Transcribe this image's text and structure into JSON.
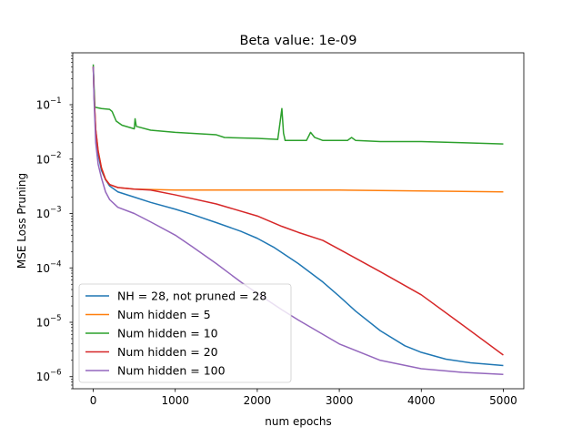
{
  "chart_data": {
    "type": "line",
    "title": "Beta value: 1e-09",
    "xlabel": "num epochs",
    "ylabel": "MSE Loss Pruning",
    "x_ticks": [
      0,
      1000,
      2000,
      3000,
      4000,
      5000
    ],
    "x_tick_labels": [
      "0",
      "1000",
      "2000",
      "3000",
      "4000",
      "5000"
    ],
    "xlim": [
      -250,
      5250
    ],
    "yscale": "log",
    "ylim": [
      6e-07,
      0.9
    ],
    "y_ticks": [
      1e-06,
      1e-05,
      0.0001,
      0.001,
      0.01,
      0.1
    ],
    "y_tick_labels": [
      {
        "base": "10",
        "exp": "−6"
      },
      {
        "base": "10",
        "exp": "−5"
      },
      {
        "base": "10",
        "exp": "−4"
      },
      {
        "base": "10",
        "exp": "−3"
      },
      {
        "base": "10",
        "exp": "−2"
      },
      {
        "base": "10",
        "exp": "−1"
      }
    ],
    "grid": false,
    "legend_position": "lower-left",
    "series": [
      {
        "name": "NH = 28, not pruned = 28",
        "color": "#1f77b4",
        "points": [
          [
            0,
            0.5
          ],
          [
            10,
            0.15
          ],
          [
            30,
            0.03
          ],
          [
            60,
            0.012
          ],
          [
            100,
            0.0062
          ],
          [
            150,
            0.0042
          ],
          [
            200,
            0.0032
          ],
          [
            300,
            0.0025
          ],
          [
            500,
            0.002
          ],
          [
            700,
            0.0016
          ],
          [
            1000,
            0.0012
          ],
          [
            1200,
            0.00097
          ],
          [
            1500,
            0.00068
          ],
          [
            1800,
            0.00047
          ],
          [
            2000,
            0.00035
          ],
          [
            2200,
            0.00024
          ],
          [
            2500,
            0.00012
          ],
          [
            2800,
            5.5e-05
          ],
          [
            3000,
            3e-05
          ],
          [
            3200,
            1.6e-05
          ],
          [
            3500,
            7e-06
          ],
          [
            3800,
            3.7e-06
          ],
          [
            4000,
            2.8e-06
          ],
          [
            4300,
            2.1e-06
          ],
          [
            4600,
            1.8e-06
          ],
          [
            5000,
            1.6e-06
          ]
        ]
      },
      {
        "name": "Num hidden = 5",
        "color": "#ff7f0e",
        "points": [
          [
            0,
            0.5
          ],
          [
            10,
            0.15
          ],
          [
            30,
            0.035
          ],
          [
            60,
            0.014
          ],
          [
            100,
            0.007
          ],
          [
            150,
            0.0043
          ],
          [
            200,
            0.0034
          ],
          [
            300,
            0.003
          ],
          [
            500,
            0.0028
          ],
          [
            1000,
            0.0027
          ],
          [
            2000,
            0.0027
          ],
          [
            3000,
            0.0027
          ],
          [
            4000,
            0.0026
          ],
          [
            5000,
            0.0025
          ]
        ]
      },
      {
        "name": "Num hidden = 10",
        "color": "#2ca02c",
        "points": [
          [
            0,
            0.55
          ],
          [
            8,
            0.25
          ],
          [
            20,
            0.09
          ],
          [
            100,
            0.085
          ],
          [
            200,
            0.082
          ],
          [
            230,
            0.075
          ],
          [
            280,
            0.05
          ],
          [
            350,
            0.042
          ],
          [
            500,
            0.036
          ],
          [
            510,
            0.055
          ],
          [
            525,
            0.04
          ],
          [
            700,
            0.034
          ],
          [
            1000,
            0.031
          ],
          [
            1500,
            0.028
          ],
          [
            1600,
            0.025
          ],
          [
            2000,
            0.024
          ],
          [
            2250,
            0.023
          ],
          [
            2280,
            0.05
          ],
          [
            2300,
            0.085
          ],
          [
            2320,
            0.03
          ],
          [
            2340,
            0.022
          ],
          [
            2600,
            0.022
          ],
          [
            2650,
            0.031
          ],
          [
            2700,
            0.025
          ],
          [
            2800,
            0.022
          ],
          [
            3100,
            0.022
          ],
          [
            3150,
            0.025
          ],
          [
            3200,
            0.022
          ],
          [
            3500,
            0.021
          ],
          [
            4000,
            0.021
          ],
          [
            4500,
            0.02
          ],
          [
            5000,
            0.019
          ]
        ]
      },
      {
        "name": "Num hidden = 20",
        "color": "#d62728",
        "points": [
          [
            0,
            0.5
          ],
          [
            10,
            0.15
          ],
          [
            30,
            0.035
          ],
          [
            60,
            0.014
          ],
          [
            100,
            0.0068
          ],
          [
            150,
            0.0042
          ],
          [
            200,
            0.0034
          ],
          [
            300,
            0.003
          ],
          [
            500,
            0.0028
          ],
          [
            700,
            0.0027
          ],
          [
            1000,
            0.0022
          ],
          [
            1500,
            0.0015
          ],
          [
            2000,
            0.0009
          ],
          [
            2300,
            0.00058
          ],
          [
            2500,
            0.00045
          ],
          [
            2800,
            0.00032
          ],
          [
            3000,
            0.00022
          ],
          [
            3500,
            8.5e-05
          ],
          [
            4000,
            3.2e-05
          ],
          [
            4500,
            9e-06
          ],
          [
            5000,
            2.5e-06
          ]
        ]
      },
      {
        "name": "Num hidden = 100",
        "color": "#9467bd",
        "points": [
          [
            0,
            0.5
          ],
          [
            10,
            0.12
          ],
          [
            30,
            0.02
          ],
          [
            60,
            0.008
          ],
          [
            100,
            0.0045
          ],
          [
            150,
            0.0025
          ],
          [
            200,
            0.0018
          ],
          [
            300,
            0.0013
          ],
          [
            500,
            0.001
          ],
          [
            700,
            0.0007
          ],
          [
            1000,
            0.0004
          ],
          [
            1200,
            0.00025
          ],
          [
            1500,
            0.00012
          ],
          [
            1800,
            5.5e-05
          ],
          [
            2000,
            3.4e-05
          ],
          [
            2300,
            1.7e-05
          ],
          [
            2500,
            1.1e-05
          ],
          [
            3000,
            4e-06
          ],
          [
            3500,
            2e-06
          ],
          [
            4000,
            1.4e-06
          ],
          [
            4500,
            1.2e-06
          ],
          [
            5000,
            1.1e-06
          ]
        ]
      }
    ]
  }
}
